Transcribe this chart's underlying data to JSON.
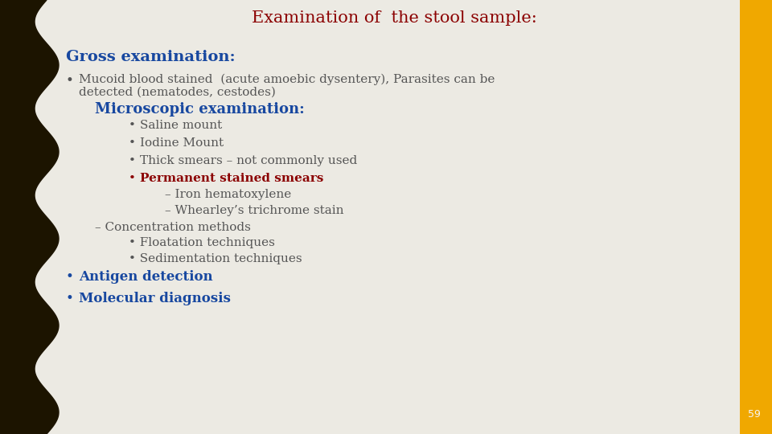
{
  "title": "Examination of  the stool sample:",
  "title_color": "#8B0000",
  "bg_color": "#ECEAE3",
  "left_bar_color": "#1C1400",
  "right_bar_color": "#F0A800",
  "gross_heading": "Gross examination:",
  "gross_heading_color": "#1848A0",
  "micro_heading": "Microscopic examination:",
  "micro_heading_color": "#1848A0",
  "antigen_text": "Antigen detection",
  "antigen_color": "#1848A0",
  "molecular_text": "Molecular diagnosis",
  "molecular_color": "#1848A0",
  "permanent_text": "Permanent stained smears",
  "permanent_color": "#8B0000",
  "text_color": "#555555",
  "page_num": "59"
}
